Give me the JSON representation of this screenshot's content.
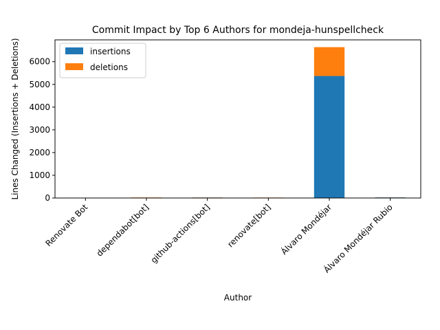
{
  "chart_data": {
    "type": "bar",
    "stacked": true,
    "title": "Commit Impact by Top 6 Authors for mondeja-hunspellcheck",
    "xlabel": "Author",
    "ylabel": "Lines Changed (Insertions + Deletions)",
    "categories": [
      "Renovate Bot",
      "dependabot[bot]",
      "github-actions[bot]",
      "renovate[bot]",
      "Álvaro Mondéjar",
      "Álvaro Mondéjar Rubio"
    ],
    "series": [
      {
        "name": "insertions",
        "color": "#1f77b4",
        "values": [
          0,
          12,
          20,
          10,
          5370,
          25
        ]
      },
      {
        "name": "deletions",
        "color": "#ff7f0e",
        "values": [
          0,
          12,
          5,
          10,
          1270,
          3
        ]
      }
    ],
    "ylim": [
      0,
      6960
    ],
    "yticks": [
      0,
      1000,
      2000,
      3000,
      4000,
      5000,
      6000
    ],
    "legend_position": "top-left",
    "grid": false
  }
}
